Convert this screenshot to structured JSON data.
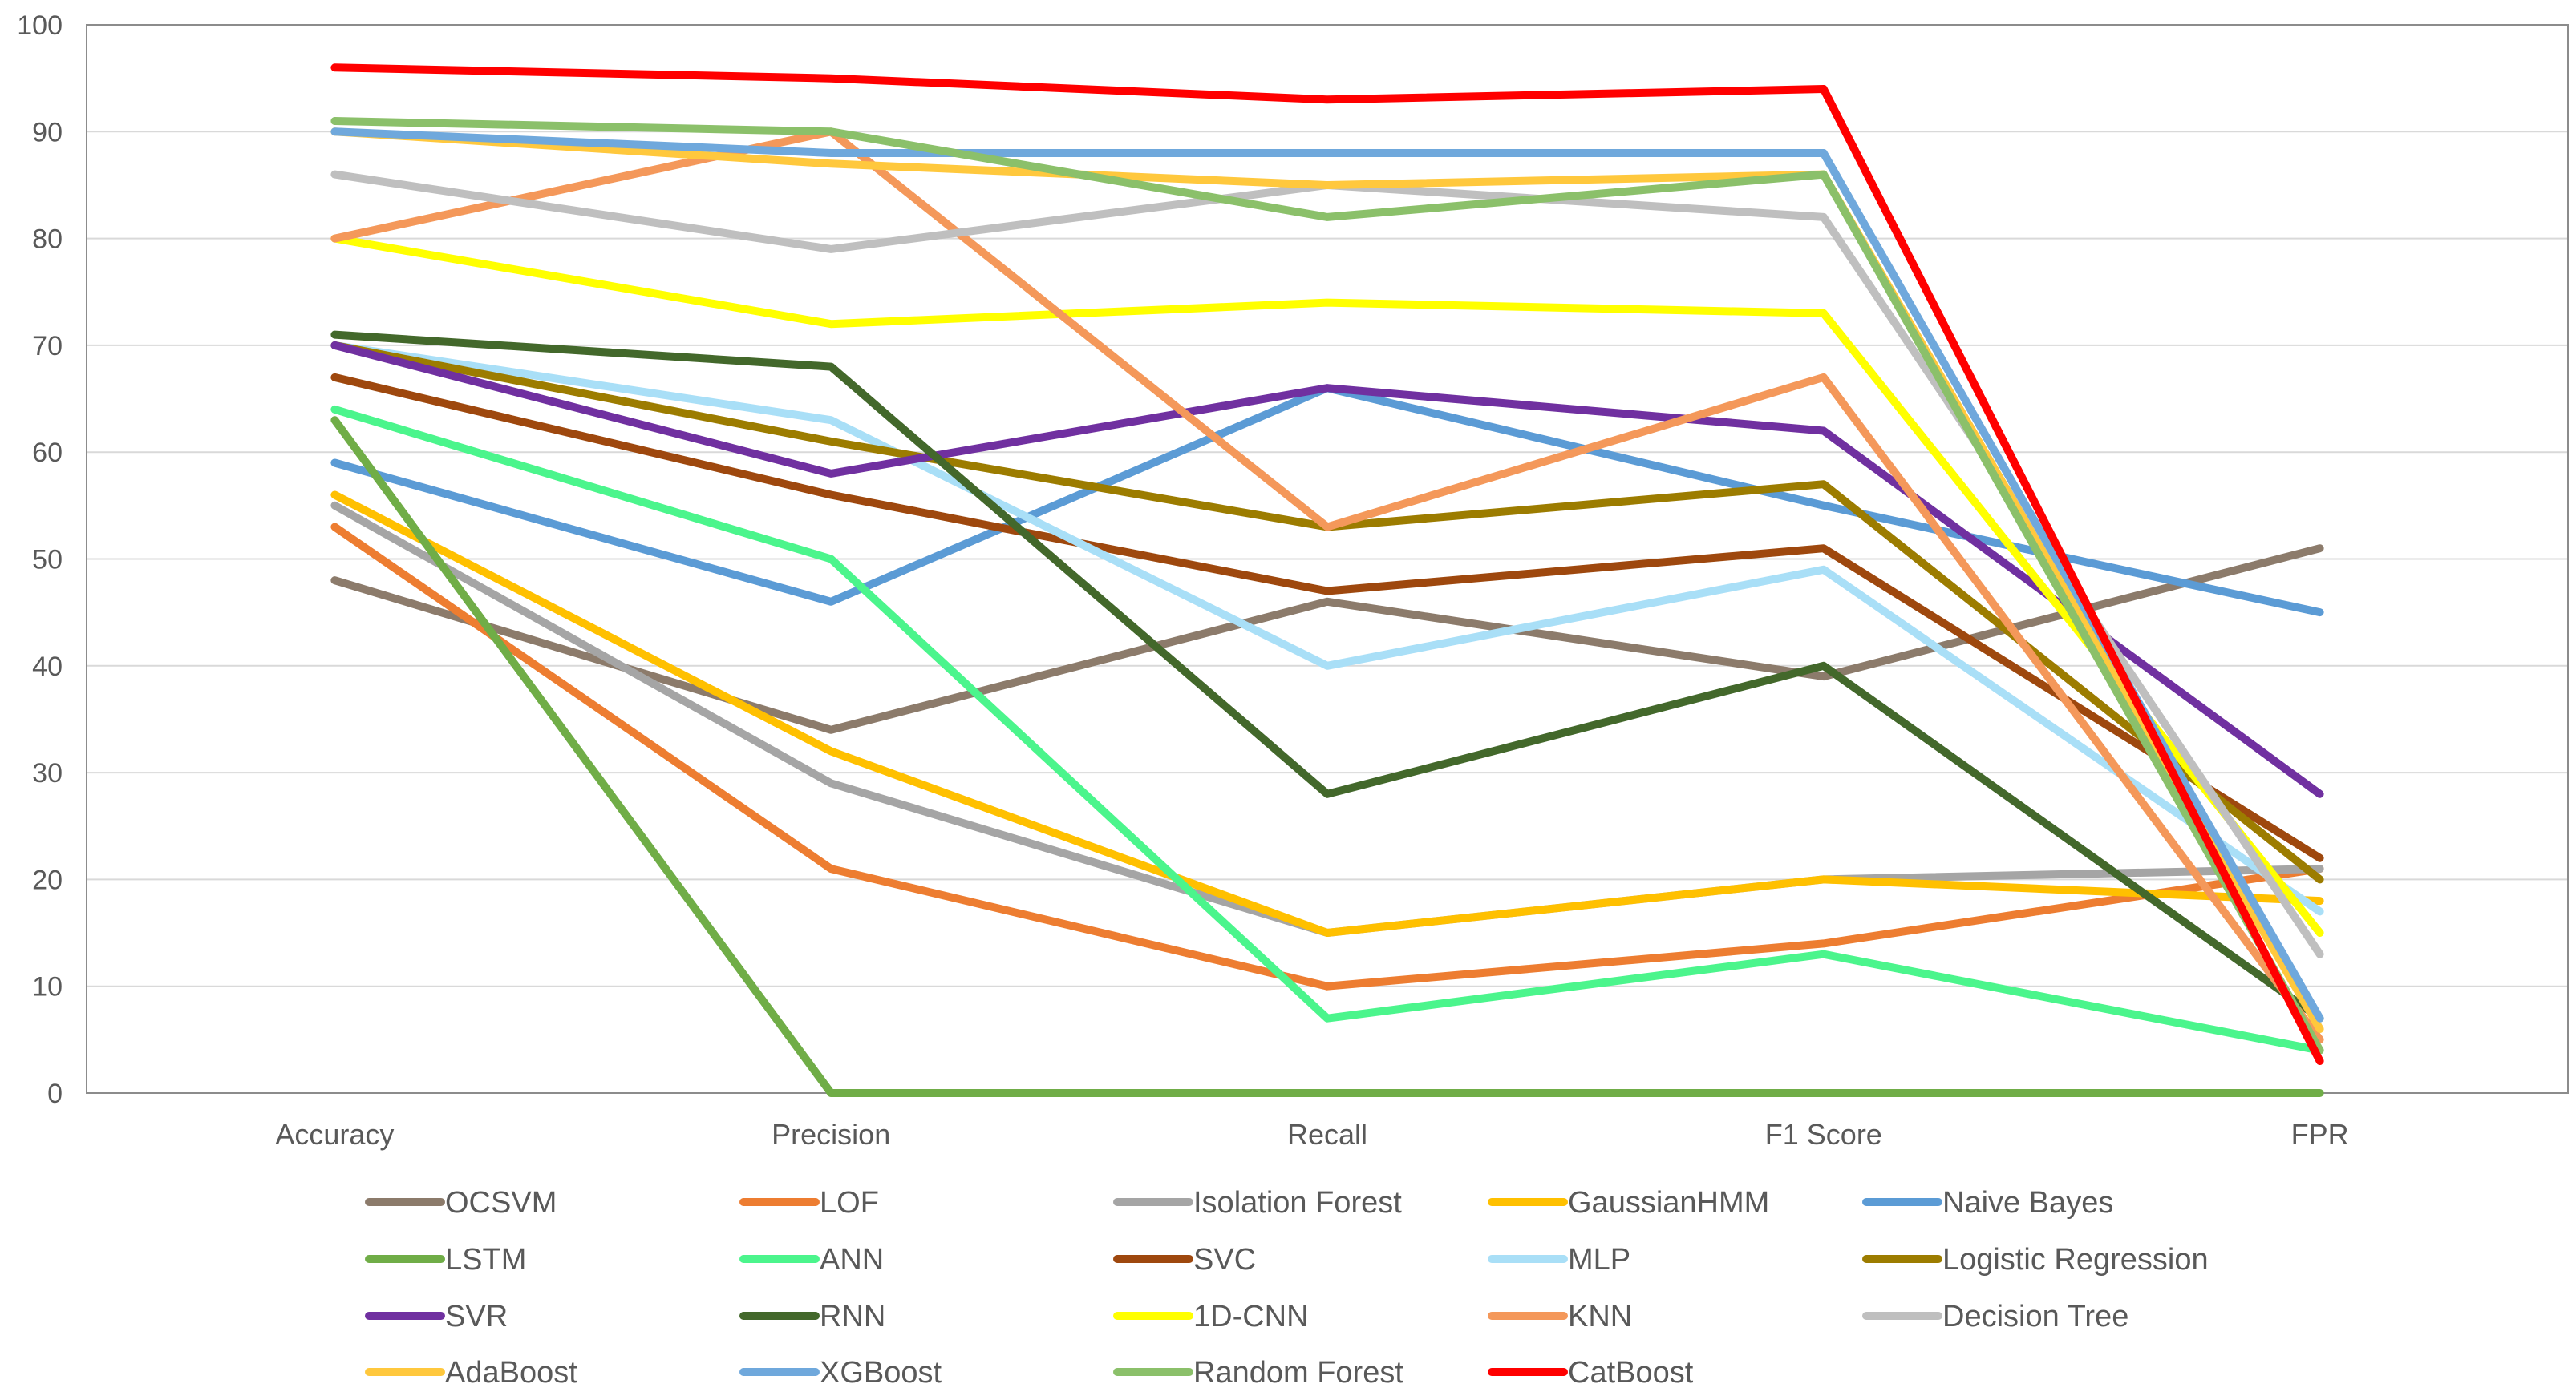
{
  "chart_data": {
    "type": "line",
    "title": "",
    "xlabel": "",
    "ylabel": "",
    "ylim": [
      0,
      100
    ],
    "yticks": [
      0,
      10,
      20,
      30,
      40,
      50,
      60,
      70,
      80,
      90,
      100
    ],
    "grid": true,
    "legend_position": "bottom",
    "categories": [
      "Accuracy",
      "Precision",
      "Recall",
      "F1 Score",
      "FPR"
    ],
    "series": [
      {
        "name": "OCSVM",
        "color": "#8C7B6B",
        "values": [
          48,
          34,
          46,
          39,
          51
        ]
      },
      {
        "name": "LOF",
        "color": "#ED7D31",
        "values": [
          53,
          21,
          10,
          14,
          21
        ]
      },
      {
        "name": "Isolation Forest",
        "color": "#A5A5A5",
        "values": [
          55,
          29,
          15,
          20,
          21
        ]
      },
      {
        "name": "GaussianHMM",
        "color": "#FFC000",
        "values": [
          56,
          32,
          15,
          20,
          18
        ]
      },
      {
        "name": "Naive Bayes",
        "color": "#5B9BD5",
        "values": [
          59,
          46,
          66,
          55,
          45
        ]
      },
      {
        "name": "LSTM",
        "color": "#70AD47",
        "values": [
          63,
          0,
          0,
          0,
          0
        ]
      },
      {
        "name": "ANN",
        "color": "#4BF58C",
        "values": [
          64,
          50,
          7,
          13,
          4
        ]
      },
      {
        "name": "SVC",
        "color": "#9E480E",
        "values": [
          67,
          56,
          47,
          51,
          22
        ]
      },
      {
        "name": "MLP",
        "color": "#A9DFF7",
        "values": [
          70,
          63,
          40,
          49,
          17
        ]
      },
      {
        "name": "Logistic Regression",
        "color": "#9C7C00",
        "values": [
          70,
          61,
          53,
          57,
          20
        ]
      },
      {
        "name": "SVR",
        "color": "#7030A0",
        "values": [
          70,
          58,
          66,
          62,
          28
        ]
      },
      {
        "name": "RNN",
        "color": "#43682B",
        "values": [
          71,
          68,
          28,
          40,
          7
        ]
      },
      {
        "name": "1D-CNN",
        "color": "#FFFF00",
        "values": [
          80,
          72,
          74,
          73,
          15
        ]
      },
      {
        "name": "KNN",
        "color": "#F4985A",
        "values": [
          80,
          90,
          53,
          67,
          5
        ]
      },
      {
        "name": "Decision Tree",
        "color": "#BFBFBF",
        "values": [
          86,
          79,
          85,
          82,
          13
        ]
      },
      {
        "name": "AdaBoost",
        "color": "#FFC83D",
        "values": [
          90,
          87,
          85,
          86,
          6
        ]
      },
      {
        "name": "XGBoost",
        "color": "#6FA8DC",
        "values": [
          90,
          88,
          88,
          88,
          7
        ]
      },
      {
        "name": "Random Forest",
        "color": "#8BC06A",
        "values": [
          91,
          90,
          82,
          86,
          4
        ]
      },
      {
        "name": "CatBoost",
        "color": "#FF0000",
        "values": [
          96,
          95,
          93,
          94,
          3
        ]
      }
    ]
  }
}
